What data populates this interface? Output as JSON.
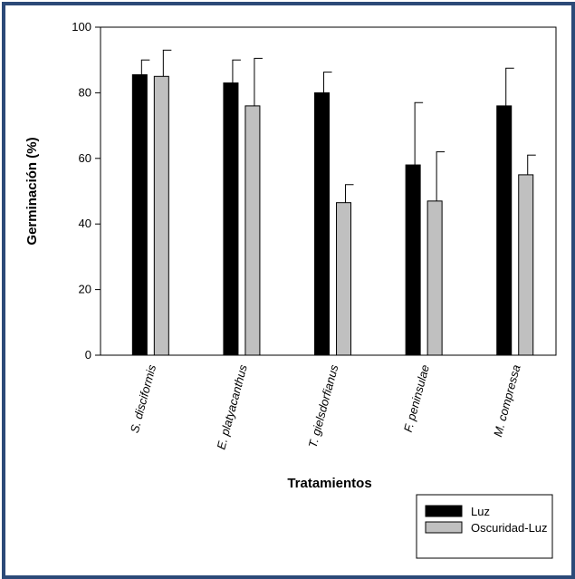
{
  "chart_data": {
    "type": "bar",
    "title": "",
    "xlabel": "Tratamientos",
    "ylabel": "Germinación (%)",
    "ylim": [
      0,
      100
    ],
    "yticks": [
      0,
      20,
      40,
      60,
      80,
      100
    ],
    "grid": false,
    "legend_position": "bottom-right",
    "categories": [
      "S. disciformis",
      "E. platyacanthus",
      "T. gielsdorfianus",
      "F. peninsulae",
      "M. compressa"
    ],
    "series": [
      {
        "name": "Luz",
        "color": "#000000",
        "values": [
          85.5,
          83,
          80,
          58,
          76
        ],
        "errors": [
          4.5,
          7,
          6.3,
          19,
          11.5
        ]
      },
      {
        "name": "Oscuridad-Luz",
        "color": "#c0c0c0",
        "values": [
          85,
          76,
          46.5,
          47,
          55
        ],
        "errors": [
          8,
          14.5,
          5.5,
          15,
          6
        ]
      }
    ]
  }
}
